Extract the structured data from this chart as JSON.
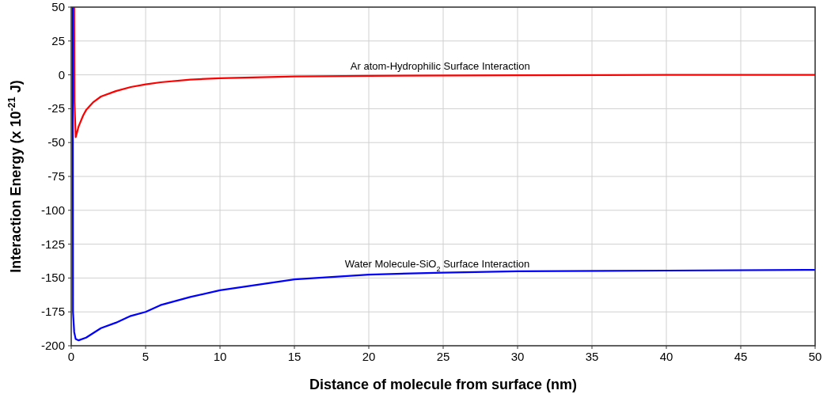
{
  "chart_data": {
    "type": "line",
    "xlabel": "Distance of molecule from surface (nm)",
    "ylabel": "Interaction Energy (x 10$^{-21}$ J)",
    "xlim": [
      0,
      50
    ],
    "ylim": [
      -200,
      50
    ],
    "xticks": [
      0,
      5,
      10,
      15,
      20,
      25,
      30,
      35,
      40,
      45,
      50
    ],
    "yticks": [
      -200,
      -175,
      -150,
      -125,
      -100,
      -75,
      -50,
      -25,
      0,
      25,
      50
    ],
    "grid": true,
    "marker": "none",
    "line_style": "solid",
    "series": [
      {
        "color": "#ff0000",
        "x": [
          0.2,
          0.22,
          0.3,
          0.5,
          0.8,
          1,
          1.5,
          2,
          3,
          4,
          5,
          6,
          8,
          10,
          15,
          20,
          30,
          40,
          50
        ],
        "values": [
          50,
          -20,
          -46,
          -38,
          -30,
          -26,
          -20,
          -16,
          -12,
          -9,
          -7,
          -5.5,
          -3.5,
          -2.5,
          -1.2,
          -0.7,
          -0.3,
          0,
          0
        ]
      },
      {
        "color": "#0000ff",
        "x": [
          0.1,
          0.12,
          0.2,
          0.3,
          0.5,
          1,
          2,
          3,
          4,
          5,
          6,
          8,
          10,
          15,
          20,
          25,
          30,
          40,
          50
        ],
        "values": [
          50,
          -175,
          -190,
          -195,
          -196,
          -194,
          -187,
          -183,
          -178,
          -175,
          -170,
          -164,
          -159,
          -151,
          -147.5,
          -146,
          -145,
          -144.5,
          -144
        ]
      }
    ],
    "annotations": [
      {
        "text": "Ar atom-Hydrophilic Surface Interaction",
        "x": 24.8,
        "y": -0.3
      },
      {
        "text": "Water Molecule-SiO$_{2}$ Surface Interaction",
        "x": 24.6,
        "y": -146
      }
    ]
  }
}
